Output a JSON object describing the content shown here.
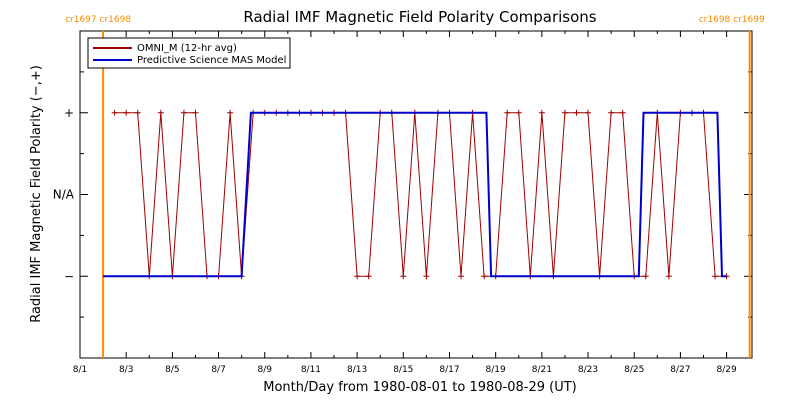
{
  "chart_data": {
    "type": "line",
    "title": "Radial IMF Magnetic Field Polarity Comparisons",
    "xlabel": "Month/Day from 1980-08-01 to 1980-08-29 (UT)",
    "ylabel": "Radial IMF Magnetic Field Polarity (−,+)",
    "x_range_days": [
      0,
      29.1
    ],
    "x_ticks": [
      {
        "day": 0,
        "label": "8/1"
      },
      {
        "day": 2,
        "label": "8/3"
      },
      {
        "day": 4,
        "label": "8/5"
      },
      {
        "day": 6,
        "label": "8/7"
      },
      {
        "day": 8,
        "label": "8/9"
      },
      {
        "day": 10,
        "label": "8/11"
      },
      {
        "day": 12,
        "label": "8/13"
      },
      {
        "day": 14,
        "label": "8/15"
      },
      {
        "day": 16,
        "label": "8/17"
      },
      {
        "day": 18,
        "label": "8/19"
      },
      {
        "day": 20,
        "label": "8/21"
      },
      {
        "day": 22,
        "label": "8/23"
      },
      {
        "day": 24,
        "label": "8/25"
      },
      {
        "day": 26,
        "label": "8/27"
      },
      {
        "day": 28,
        "label": "8/29"
      }
    ],
    "y_range": [
      -2,
      2
    ],
    "y_ticks": [
      {
        "value": 1,
        "label": "+"
      },
      {
        "value": 0,
        "label": "N/A"
      },
      {
        "value": -1,
        "label": "−"
      }
    ],
    "legend_position": "top-left",
    "carrington_markers": [
      {
        "day": 1.0,
        "label": "cr1697 cr1698",
        "side": "left"
      },
      {
        "day": 29.0,
        "label": "cr1698 cr1699",
        "side": "right"
      }
    ],
    "series": [
      {
        "name": "OMNI_M (12-hr avg)",
        "color": "#a00000",
        "marker": "+",
        "points": [
          [
            1.5,
            1
          ],
          [
            2.0,
            1
          ],
          [
            2.5,
            1
          ],
          [
            3.0,
            -1
          ],
          [
            3.5,
            1
          ],
          [
            4.0,
            -1
          ],
          [
            4.5,
            1
          ],
          [
            5.0,
            1
          ],
          [
            5.5,
            -1
          ],
          [
            6.0,
            -1
          ],
          [
            6.5,
            1
          ],
          [
            7.0,
            -1
          ],
          [
            7.5,
            1
          ],
          [
            8.0,
            1
          ],
          [
            8.5,
            1
          ],
          [
            9.0,
            1
          ],
          [
            9.5,
            1
          ],
          [
            10.0,
            1
          ],
          [
            10.5,
            1
          ],
          [
            11.0,
            1
          ],
          [
            11.5,
            1
          ],
          [
            12.0,
            -1
          ],
          [
            12.5,
            -1
          ],
          [
            13.0,
            1
          ],
          [
            13.5,
            1
          ],
          [
            14.0,
            -1
          ],
          [
            14.5,
            1
          ],
          [
            15.0,
            -1
          ],
          [
            15.5,
            1
          ],
          [
            16.0,
            1
          ],
          [
            16.5,
            -1
          ],
          [
            17.0,
            1
          ],
          [
            17.5,
            -1
          ],
          [
            18.0,
            -1
          ],
          [
            18.5,
            1
          ],
          [
            19.0,
            1
          ],
          [
            19.5,
            -1
          ],
          [
            20.0,
            1
          ],
          [
            20.5,
            -1
          ],
          [
            21.0,
            1
          ],
          [
            21.5,
            1
          ],
          [
            22.0,
            1
          ],
          [
            22.5,
            -1
          ],
          [
            23.0,
            1
          ],
          [
            23.5,
            1
          ],
          [
            24.0,
            -1
          ],
          [
            24.5,
            -1
          ],
          [
            25.0,
            1
          ],
          [
            25.5,
            -1
          ],
          [
            26.0,
            1
          ],
          [
            26.5,
            1
          ],
          [
            27.0,
            1
          ],
          [
            27.5,
            -1
          ],
          [
            28.0,
            -1
          ]
        ]
      },
      {
        "name": "Predictive Science MAS Model",
        "color": "#0000cc",
        "marker": "none",
        "points": [
          [
            1.0,
            -1
          ],
          [
            7.0,
            -1
          ],
          [
            7.4,
            1
          ],
          [
            17.6,
            1
          ],
          [
            17.8,
            -1
          ],
          [
            24.2,
            -1
          ],
          [
            24.4,
            1
          ],
          [
            27.6,
            1
          ],
          [
            27.8,
            -1
          ],
          [
            28.0,
            -1
          ]
        ]
      }
    ]
  }
}
